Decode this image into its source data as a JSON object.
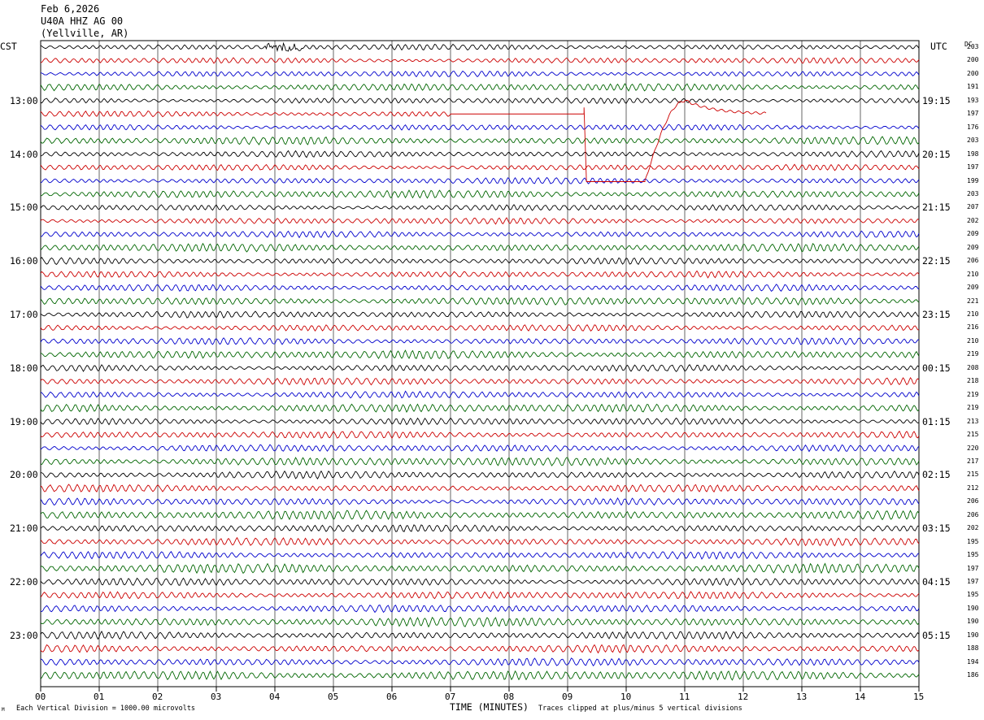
{
  "header": {
    "date": "Feb 6,2026",
    "station": "U40A HHZ AG 00",
    "location": "(Yellville, AR)"
  },
  "left_timezone": "CST",
  "right_timezone": "UTC",
  "dc_header": "DC",
  "footer": {
    "scale_note": "Each Vertical Division = 1000.00 microvolts",
    "clip_note": "Traces clipped at plus/minus 5 vertical divisions",
    "corner_mark": "M"
  },
  "chart_data": {
    "type": "line",
    "title": "",
    "xlabel": "TIME (MINUTES)",
    "ylabel": "",
    "xlim": [
      0,
      15
    ],
    "x_ticks": [
      "00",
      "01",
      "02",
      "03",
      "04",
      "05",
      "06",
      "07",
      "08",
      "09",
      "10",
      "11",
      "12",
      "13",
      "14",
      "15"
    ],
    "left_hour_labels": [
      "13:00",
      "14:00",
      "15:00",
      "16:00",
      "17:00",
      "18:00",
      "19:00",
      "20:00",
      "21:00",
      "22:00",
      "23:00"
    ],
    "right_hour_labels": [
      "19:15",
      "20:15",
      "21:15",
      "22:15",
      "23:15",
      "00:15",
      "01:15",
      "02:15",
      "03:15",
      "04:15",
      "05:15"
    ],
    "trace_colors": [
      "#000000",
      "#cc0000",
      "#0000cc",
      "#006600"
    ],
    "dc_offsets": [
      203,
      200,
      200,
      191,
      193,
      197,
      176,
      203,
      198,
      197,
      199,
      203,
      207,
      202,
      209,
      209,
      206,
      210,
      209,
      221,
      210,
      216,
      210,
      219,
      208,
      218,
      219,
      219,
      213,
      215,
      220,
      217,
      215,
      212,
      206,
      206,
      202,
      195,
      195,
      197,
      197,
      195,
      190,
      190,
      190,
      188,
      194,
      186
    ],
    "grid": true
  }
}
